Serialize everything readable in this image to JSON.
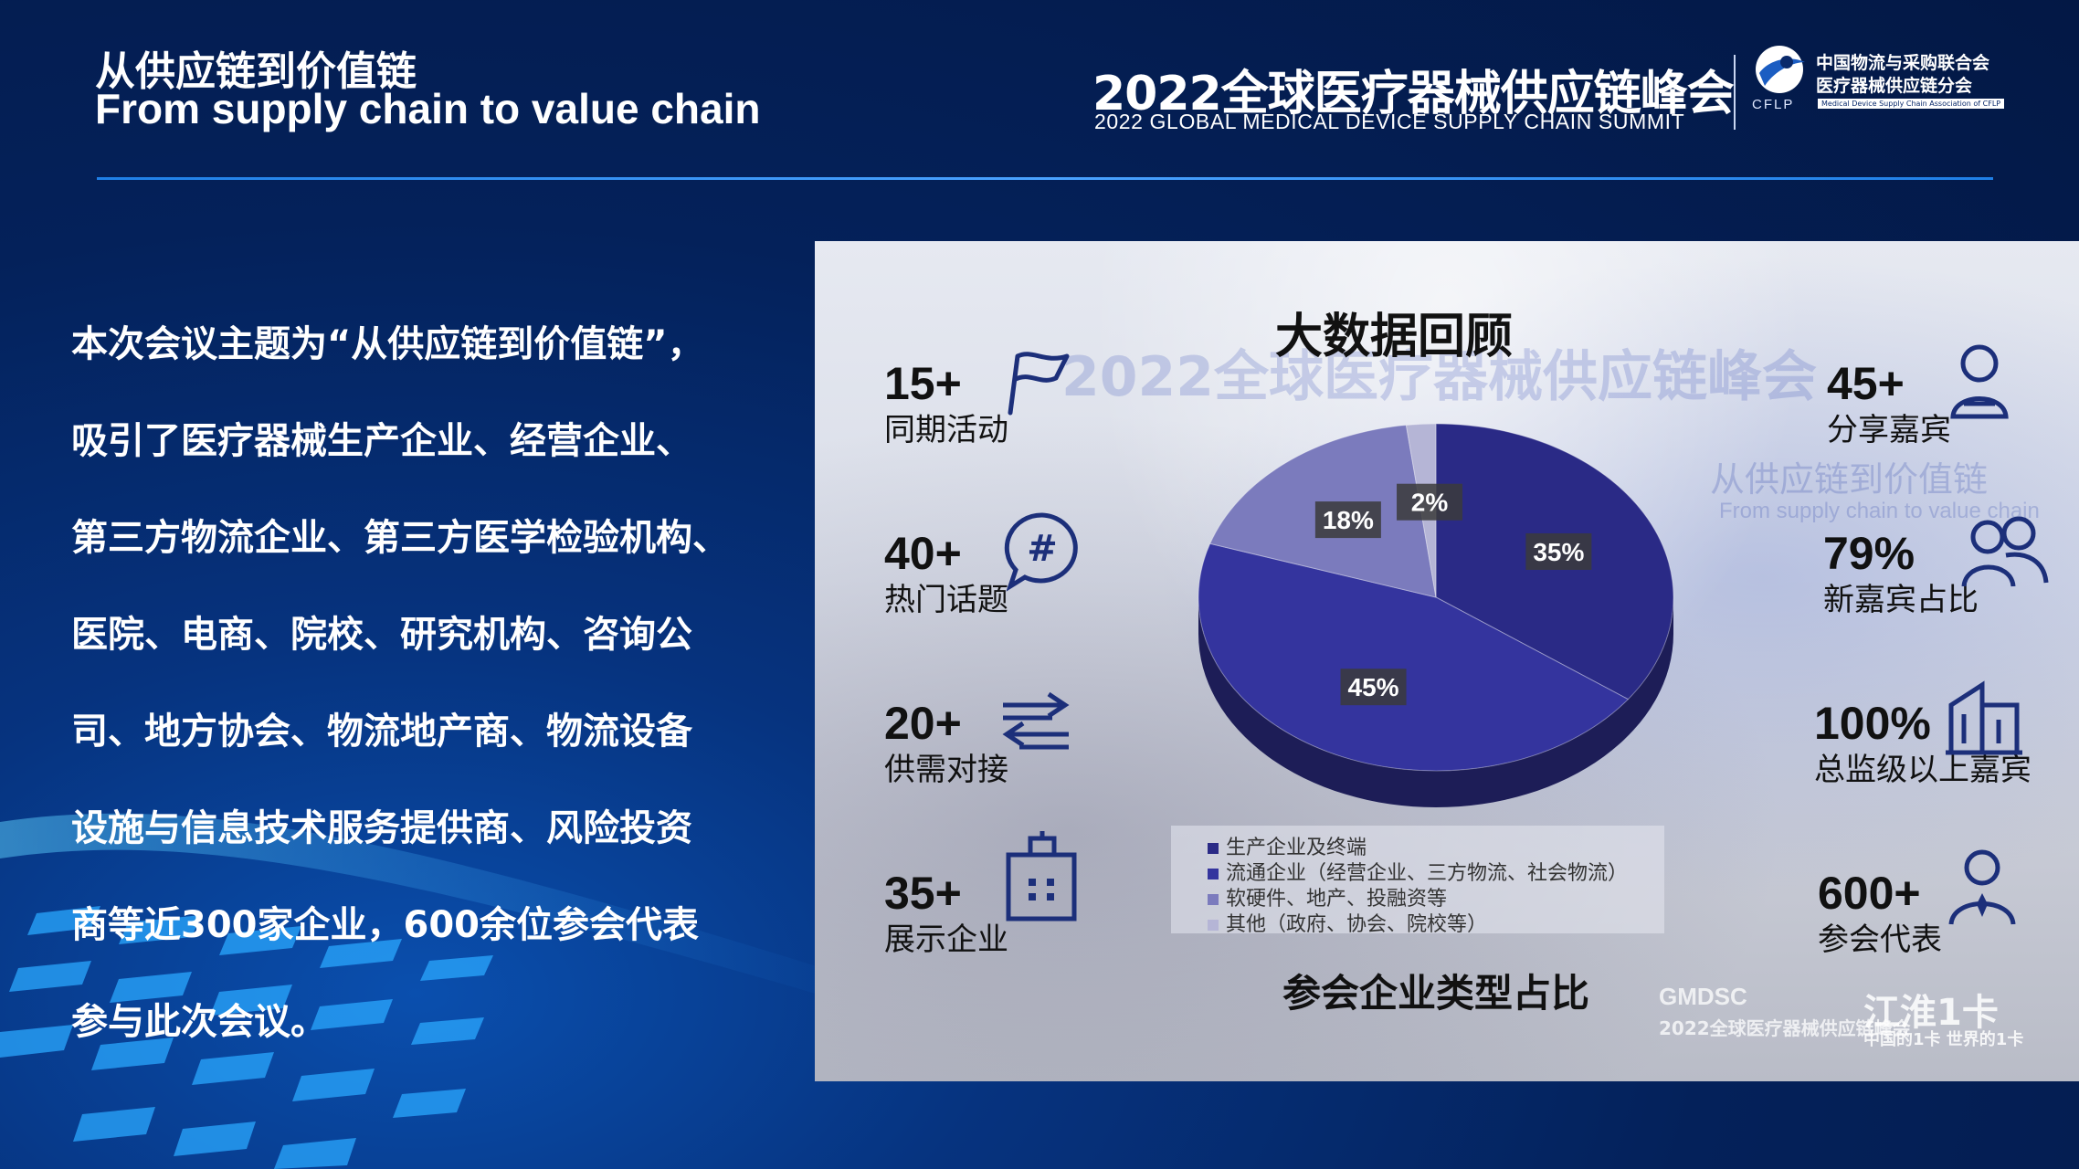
{
  "header": {
    "title_zh": "从供应链到价值链",
    "title_en": "From supply chain to value chain",
    "summit_title": "2022全球医疗器械供应链峰会",
    "summit_subtitle": "2022 GLOBAL MEDICAL DEVICE SUPPLY CHAIN SUMMIT",
    "org_name_line1": "中国物流与采购联合会",
    "org_name_line2": "医疗器械供应链分会",
    "org_abbr": "CFLP",
    "org_en": "Medical Device Supply Chain Association of CFLP"
  },
  "body": {
    "lines": [
      "本次会议主题为“从供应链到价值链”，",
      "吸引了医疗器械生产企业、经营企业、",
      "第三方物流企业、第三方医学检验机构、",
      "医院、电商、院校、研究机构、咨询公",
      "司、地方协会、物流地产商、物流设备",
      "设施与信息技术服务提供商、风险投资",
      "商等近300家企业，600余位参会代表",
      "参与此次会议。"
    ]
  },
  "panel": {
    "title": "大数据回顾",
    "bg_banner": "2022全球医疗器械供应链峰会",
    "bg_slogan": "从供应链到价值链",
    "bg_slogan_en": "From supply chain to value chain",
    "stats_left": [
      {
        "value": "15+",
        "label": "同期活动",
        "icon": "flag-icon"
      },
      {
        "value": "40+",
        "label": "热门话题",
        "icon": "hashtag-chat-icon"
      },
      {
        "value": "20+",
        "label": "供需对接",
        "icon": "exchange-arrows-icon"
      },
      {
        "value": "35+",
        "label": "展示企业",
        "icon": "building-icon"
      }
    ],
    "stats_right": [
      {
        "value": "45+",
        "label": "分享嘉宾",
        "icon": "speaker-icon"
      },
      {
        "value": "79%",
        "label": "新嘉宾占比",
        "icon": "people-icon"
      },
      {
        "value": "100%",
        "label": "总监级以上嘉宾",
        "icon": "office-icon"
      },
      {
        "value": "600+",
        "label": "参会代表",
        "icon": "attendee-icon"
      }
    ],
    "chart_caption": "参会企业类型占比",
    "watermark": {
      "brand": "GMDSC",
      "summit": "2022全球医疗器械供应链峰会",
      "sponsor": "江淮1卡",
      "sponsor_slogan": "中国的1卡 世界的1卡"
    }
  },
  "chart_data": {
    "type": "pie",
    "title": "参会企业类型占比",
    "slices": [
      {
        "label": "生产企业及终端",
        "value": 35,
        "display": "35%",
        "color": "#2a2a86"
      },
      {
        "label": "流通企业（经营企业、三方物流、社会物流）",
        "value": 45,
        "display": "45%",
        "color": "#34349e"
      },
      {
        "label": "软硬件、地产、投融资等",
        "value": 18,
        "display": "18%",
        "color": "#7b7bbd"
      },
      {
        "label": "其他（政府、协会、院校等）",
        "value": 2,
        "display": "2%",
        "color": "#b5b5d6"
      }
    ],
    "legend_position": "bottom"
  }
}
